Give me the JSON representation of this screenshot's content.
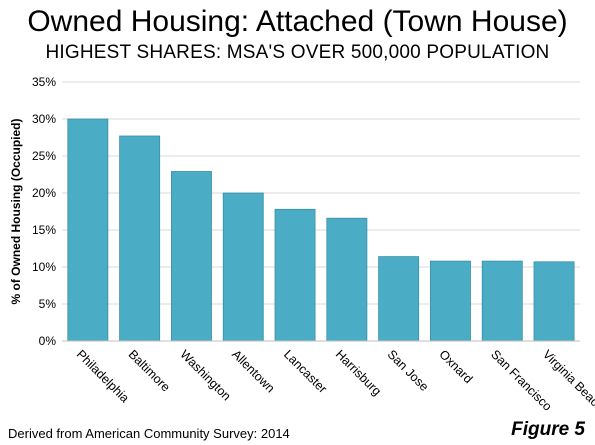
{
  "title": "Owned Housing: Attached (Town House)",
  "subtitle": "HIGHEST SHARES: MSA'S OVER 500,000 POPULATION",
  "source": "Derived from American Community Survey: 2014",
  "figure_label": "Figure 5",
  "chart_data": {
    "type": "bar",
    "ylabel": "% of Owned Housing (Occupied)",
    "xlabel": "",
    "categories": [
      "Philadelphia",
      "Baltimore",
      "Washington",
      "Allentown",
      "Lancaster",
      "Harrisburg",
      "San Jose",
      "Oxnard",
      "San Francisco",
      "Virginia Beach"
    ],
    "values": [
      30.0,
      27.7,
      22.9,
      20.0,
      17.8,
      16.6,
      11.4,
      10.8,
      10.8,
      10.7
    ],
    "ylim": [
      0,
      35
    ],
    "yticks": [
      "0%",
      "5%",
      "10%",
      "15%",
      "20%",
      "25%",
      "30%",
      "35%"
    ],
    "grid": true,
    "bar_color": "#4bacc6",
    "bar_edge_color": "#3a8fa8"
  }
}
